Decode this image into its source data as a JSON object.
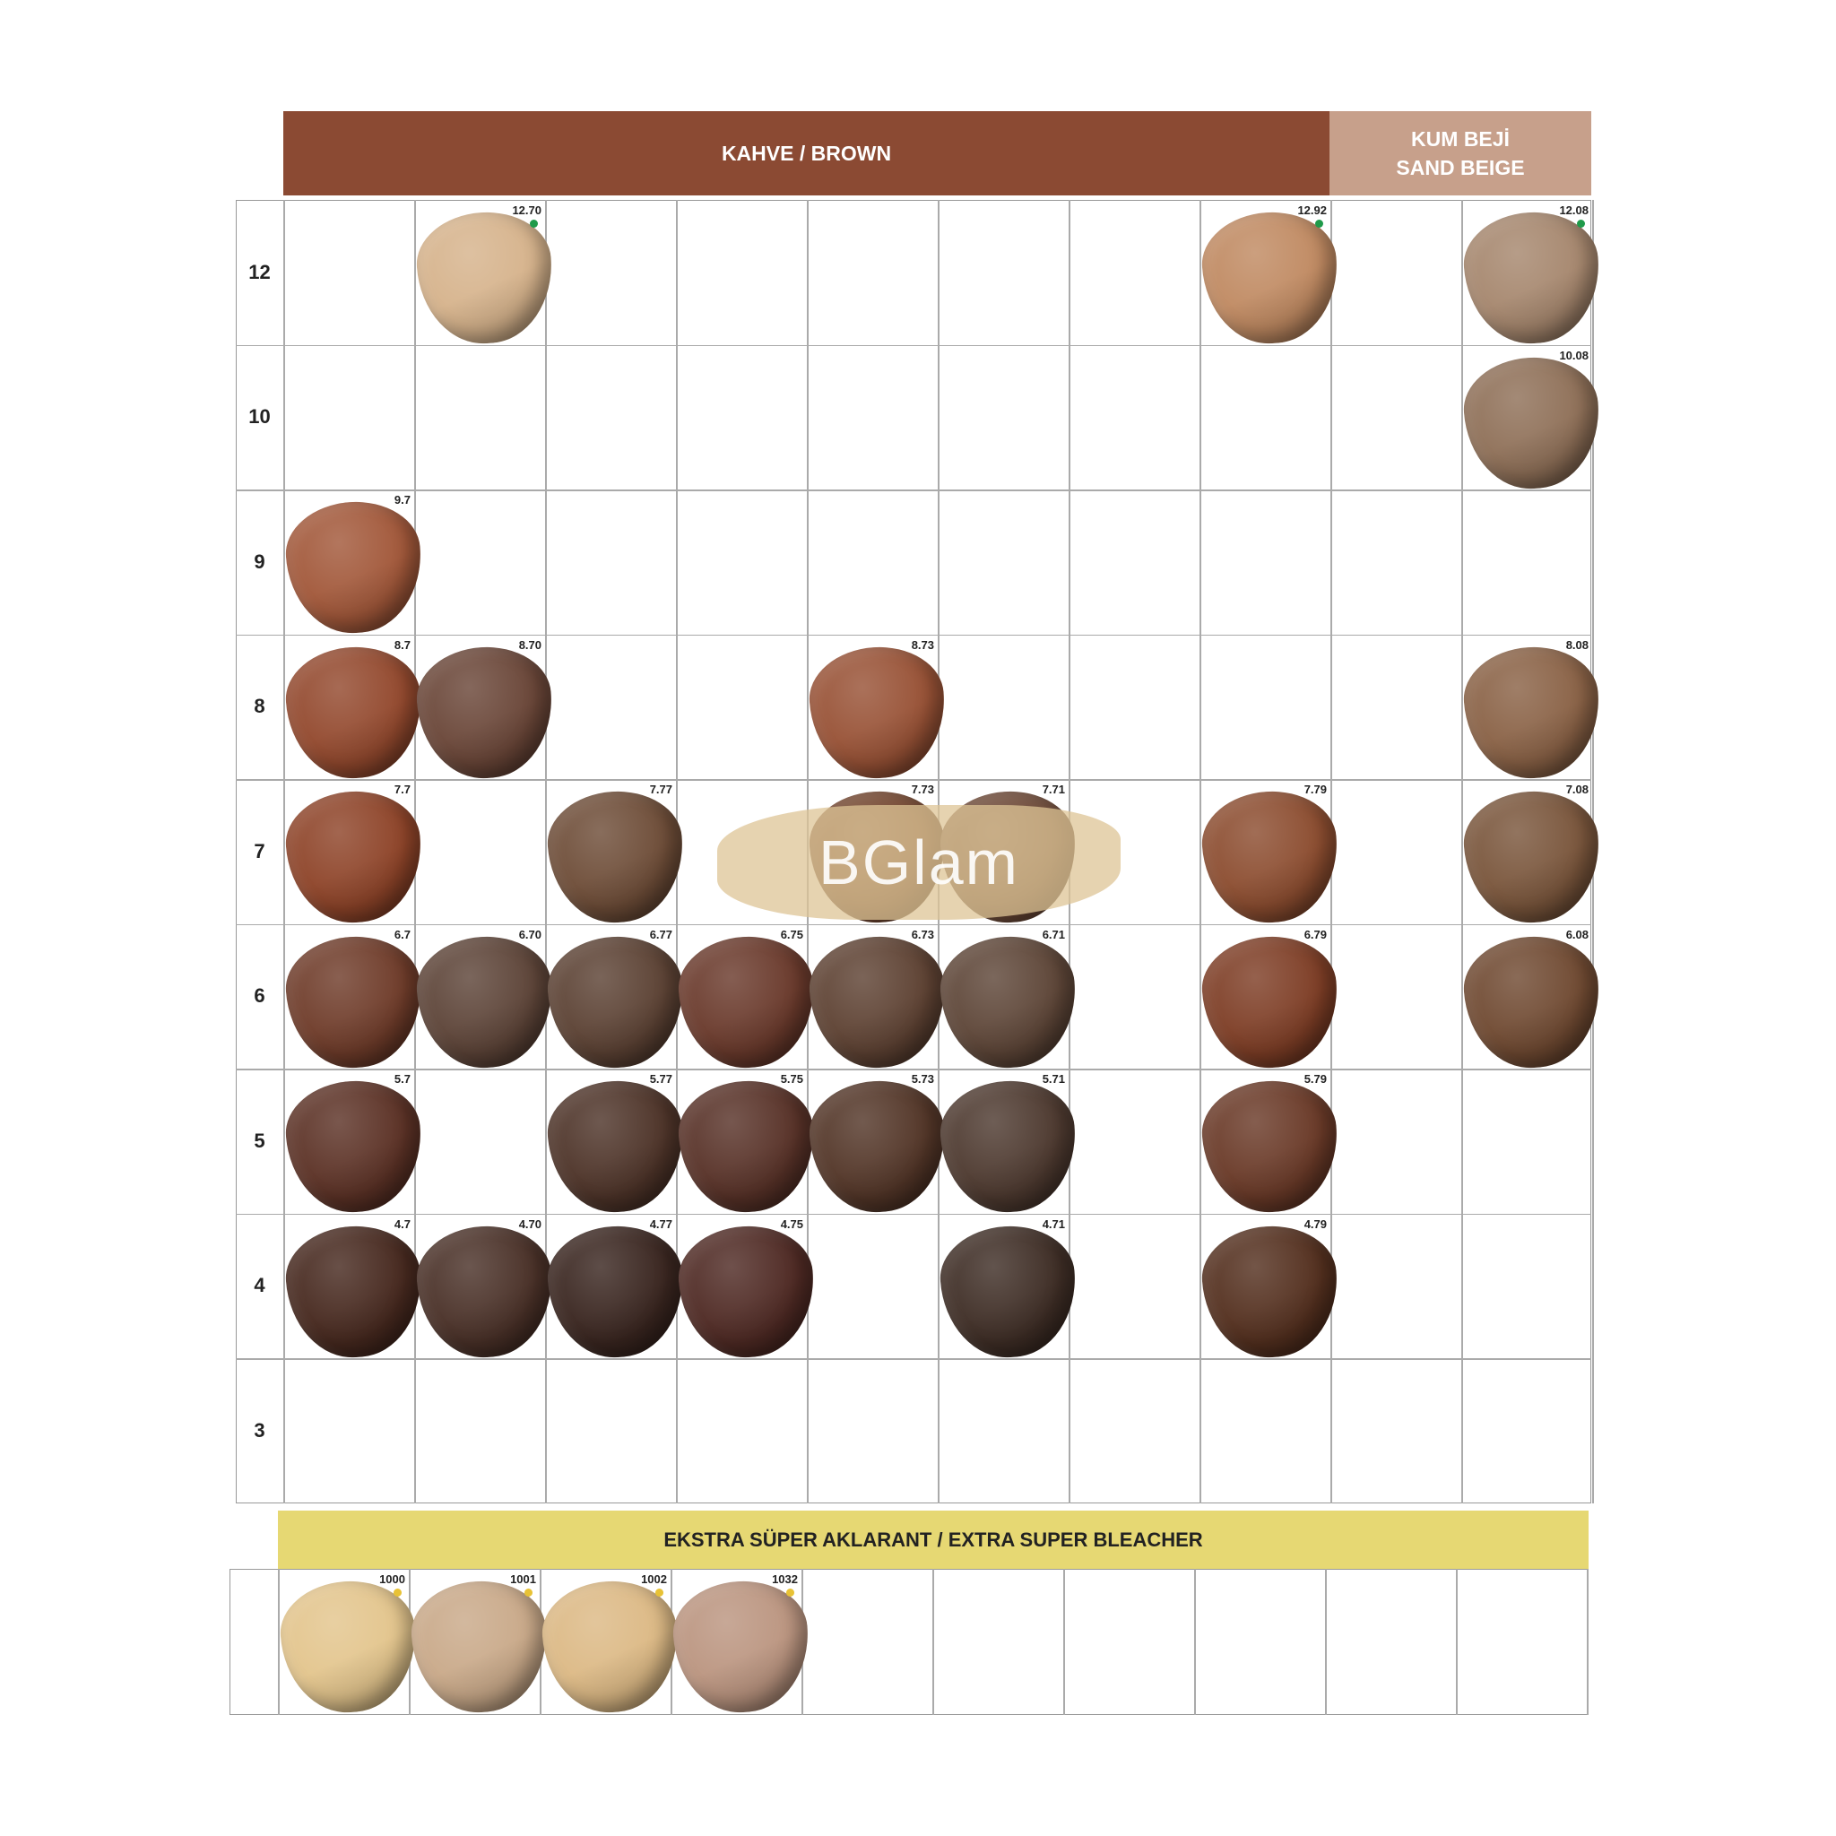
{
  "header": {
    "brown_label": "KAHVE / BROWN",
    "sand_beige_label_tr": "KUM BEJİ",
    "sand_beige_label_en": "SAND BEIGE",
    "brown_color": "#8b4a33",
    "sand_beige_color": "#c7a08b"
  },
  "watermark": "BGlam",
  "row_labels": [
    "12",
    "10",
    "9",
    "8",
    "7",
    "6",
    "5",
    "4",
    "3"
  ],
  "swatches": [
    {
      "row": 0,
      "col": 1,
      "code": "12.70",
      "color": "#d6b38c",
      "dot": "#1f9a4a"
    },
    {
      "row": 0,
      "col": 7,
      "code": "12.92",
      "color": "#c08a62",
      "dot": "#1f9a4a"
    },
    {
      "row": 0,
      "col": 9,
      "code": "12.08",
      "color": "#a6876e",
      "dot": "#1f9a4a"
    },
    {
      "row": 1,
      "col": 9,
      "code": "10.08",
      "color": "#8f7058"
    },
    {
      "row": 2,
      "col": 0,
      "code": "9.7",
      "color": "#a2583a"
    },
    {
      "row": 3,
      "col": 0,
      "code": "8.7",
      "color": "#93492e"
    },
    {
      "row": 3,
      "col": 1,
      "code": "8.70",
      "color": "#6a4638"
    },
    {
      "row": 3,
      "col": 4,
      "code": "8.73",
      "color": "#985236"
    },
    {
      "row": 3,
      "col": 9,
      "code": "8.08",
      "color": "#8a6246"
    },
    {
      "row": 4,
      "col": 0,
      "code": "7.7",
      "color": "#8e4429"
    },
    {
      "row": 4,
      "col": 2,
      "code": "7.77",
      "color": "#6e4d38"
    },
    {
      "row": 4,
      "col": 4,
      "code": "7.73",
      "color": "#73462f"
    },
    {
      "row": 4,
      "col": 5,
      "code": "7.71",
      "color": "#6e4a38"
    },
    {
      "row": 4,
      "col": 7,
      "code": "7.79",
      "color": "#8c4d30"
    },
    {
      "row": 4,
      "col": 9,
      "code": "7.08",
      "color": "#7a563c"
    },
    {
      "row": 5,
      "col": 0,
      "code": "6.7",
      "color": "#6f3c2a"
    },
    {
      "row": 5,
      "col": 1,
      "code": "6.70",
      "color": "#5d4438"
    },
    {
      "row": 5,
      "col": 2,
      "code": "6.77",
      "color": "#5c4234"
    },
    {
      "row": 5,
      "col": 3,
      "code": "6.75",
      "color": "#6a3a2c"
    },
    {
      "row": 5,
      "col": 4,
      "code": "6.73",
      "color": "#5e4233"
    },
    {
      "row": 5,
      "col": 5,
      "code": "6.71",
      "color": "#5e4638"
    },
    {
      "row": 5,
      "col": 7,
      "code": "6.79",
      "color": "#7e3e26"
    },
    {
      "row": 5,
      "col": 9,
      "code": "6.08",
      "color": "#704a32"
    },
    {
      "row": 6,
      "col": 0,
      "code": "5.7",
      "color": "#5c3226"
    },
    {
      "row": 6,
      "col": 2,
      "code": "5.77",
      "color": "#4e3429"
    },
    {
      "row": 6,
      "col": 3,
      "code": "5.75",
      "color": "#583228"
    },
    {
      "row": 6,
      "col": 4,
      "code": "5.73",
      "color": "#533628"
    },
    {
      "row": 6,
      "col": 5,
      "code": "5.71",
      "color": "#4e3a30"
    },
    {
      "row": 6,
      "col": 7,
      "code": "5.79",
      "color": "#6a3a28"
    },
    {
      "row": 7,
      "col": 0,
      "code": "4.7",
      "color": "#47291f"
    },
    {
      "row": 7,
      "col": 1,
      "code": "4.70",
      "color": "#4a3128"
    },
    {
      "row": 7,
      "col": 2,
      "code": "4.77",
      "color": "#3a2620"
    },
    {
      "row": 7,
      "col": 3,
      "code": "4.75",
      "color": "#4f2a24"
    },
    {
      "row": 7,
      "col": 5,
      "code": "4.71",
      "color": "#3f2e26"
    },
    {
      "row": 7,
      "col": 7,
      "code": "4.79",
      "color": "#54301f"
    }
  ],
  "bleacher": {
    "label": "EKSTRA SÜPER AKLARANT / EXTRA SUPER BLEACHER",
    "band_color": "#e6d873",
    "swatches": [
      {
        "col": 0,
        "code": "1000",
        "color": "#e3c58d",
        "dot": "#e8c236"
      },
      {
        "col": 1,
        "code": "1001",
        "color": "#c9a989",
        "dot": "#e8c236"
      },
      {
        "col": 2,
        "code": "1002",
        "color": "#dcb985",
        "dot": "#e8c236"
      },
      {
        "col": 3,
        "code": "1032",
        "color": "#bb9580",
        "dot": "#e8c236"
      }
    ]
  }
}
